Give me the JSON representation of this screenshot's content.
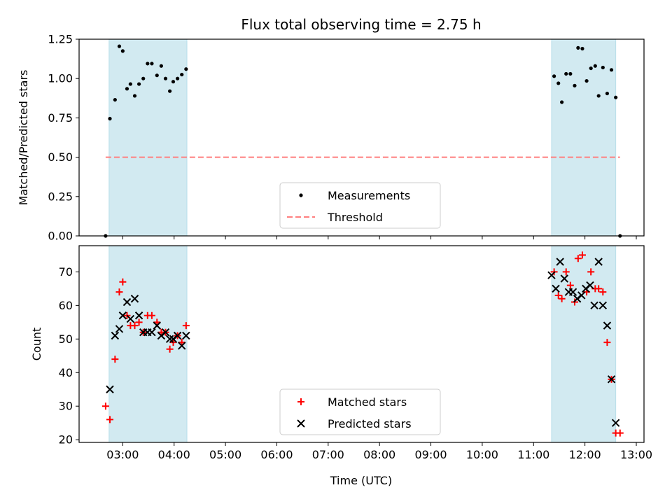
{
  "figure": {
    "title": "Flux total observing time = 2.75 h",
    "xlabel": "Time (UTC)"
  },
  "chart_data": [
    {
      "type": "scatter",
      "title": "Flux total observing time = 2.75 h",
      "xlabel": "",
      "ylabel": "Matched/Predicted stars",
      "ylim": [
        0,
        1.25
      ],
      "xlim_hours": [
        2.15,
        13.15
      ],
      "x_ticks": [
        "03:00",
        "04:00",
        "05:00",
        "06:00",
        "07:00",
        "08:00",
        "09:00",
        "10:00",
        "11:00",
        "12:00",
        "13:00"
      ],
      "y_ticks": [
        "0.00",
        "0.25",
        "0.50",
        "0.75",
        "1.00",
        "1.25"
      ],
      "shaded_intervals": [
        [
          "02:44",
          "04:15"
        ],
        [
          "11:21",
          "12:36"
        ]
      ],
      "shade_color": "#add8e6",
      "legend": {
        "placement": "lower-center",
        "entries": [
          "Measurements",
          "Threshold"
        ]
      },
      "series": [
        {
          "name": "Measurements",
          "marker": "dot",
          "color": "#000000",
          "points": [
            [
              "02:40",
              0.0
            ],
            [
              "02:45",
              0.745
            ],
            [
              "02:51",
              0.865
            ],
            [
              "02:56",
              1.205
            ],
            [
              "03:00",
              1.175
            ],
            [
              "03:05",
              0.935
            ],
            [
              "03:09",
              0.965
            ],
            [
              "03:14",
              0.89
            ],
            [
              "03:19",
              0.965
            ],
            [
              "03:24",
              1.0
            ],
            [
              "03:29",
              1.095
            ],
            [
              "03:34",
              1.095
            ],
            [
              "03:40",
              1.02
            ],
            [
              "03:45",
              1.08
            ],
            [
              "03:50",
              1.0
            ],
            [
              "03:55",
              0.92
            ],
            [
              "03:59",
              0.98
            ],
            [
              "04:04",
              1.0
            ],
            [
              "04:09",
              1.025
            ],
            [
              "04:14",
              1.06
            ],
            [
              "11:24",
              1.015
            ],
            [
              "11:29",
              0.97
            ],
            [
              "11:33",
              0.85
            ],
            [
              "11:38",
              1.03
            ],
            [
              "11:43",
              1.03
            ],
            [
              "11:48",
              0.955
            ],
            [
              "11:52",
              1.195
            ],
            [
              "11:57",
              1.19
            ],
            [
              "12:02",
              0.985
            ],
            [
              "12:07",
              1.065
            ],
            [
              "12:12",
              1.08
            ],
            [
              "12:16",
              0.89
            ],
            [
              "12:21",
              1.07
            ],
            [
              "12:26",
              0.905
            ],
            [
              "12:31",
              1.055
            ],
            [
              "12:36",
              0.88
            ],
            [
              "12:41",
              0.0
            ]
          ]
        },
        {
          "name": "Threshold",
          "line_style": "dashed",
          "color": "#ff7f7f",
          "y": 0.5,
          "x_range": [
            "02:40",
            "12:41"
          ]
        }
      ]
    },
    {
      "type": "scatter",
      "xlabel": "Time (UTC)",
      "ylabel": "Count",
      "ylim": [
        19.2,
        77.8
      ],
      "xlim_hours": [
        2.15,
        13.15
      ],
      "x_ticks": [
        "03:00",
        "04:00",
        "05:00",
        "06:00",
        "07:00",
        "08:00",
        "09:00",
        "10:00",
        "11:00",
        "12:00",
        "13:00"
      ],
      "y_ticks": [
        "20",
        "30",
        "40",
        "50",
        "60",
        "70"
      ],
      "shaded_intervals": [
        [
          "02:44",
          "04:15"
        ],
        [
          "11:21",
          "12:36"
        ]
      ],
      "shade_color": "#add8e6",
      "legend": {
        "placement": "lower-center",
        "entries": [
          "Matched stars",
          "Predicted stars"
        ]
      },
      "series": [
        {
          "name": "Matched stars",
          "marker": "plus",
          "color": "#ff0000",
          "points": [
            [
              "02:40",
              30
            ],
            [
              "02:45",
              26
            ],
            [
              "02:51",
              44
            ],
            [
              "02:56",
              64
            ],
            [
              "03:00",
              67
            ],
            [
              "03:05",
              57
            ],
            [
              "03:09",
              54
            ],
            [
              "03:14",
              54
            ],
            [
              "03:19",
              55
            ],
            [
              "03:24",
              52
            ],
            [
              "03:29",
              57
            ],
            [
              "03:34",
              57
            ],
            [
              "03:40",
              55
            ],
            [
              "03:45",
              52
            ],
            [
              "03:50",
              52
            ],
            [
              "03:55",
              47
            ],
            [
              "03:59",
              49
            ],
            [
              "04:04",
              51
            ],
            [
              "04:09",
              49
            ],
            [
              "04:14",
              54
            ],
            [
              "11:24",
              70
            ],
            [
              "11:29",
              63
            ],
            [
              "11:33",
              62
            ],
            [
              "11:38",
              70
            ],
            [
              "11:43",
              66
            ],
            [
              "11:48",
              61
            ],
            [
              "11:52",
              74
            ],
            [
              "11:57",
              75
            ],
            [
              "12:02",
              64
            ],
            [
              "12:07",
              70
            ],
            [
              "12:12",
              65
            ],
            [
              "12:16",
              65
            ],
            [
              "12:21",
              64
            ],
            [
              "12:26",
              49
            ],
            [
              "12:31",
              38
            ],
            [
              "12:36",
              22
            ],
            [
              "12:41",
              22
            ]
          ]
        },
        {
          "name": "Predicted stars",
          "marker": "x",
          "color": "#000000",
          "points": [
            [
              "02:45",
              35
            ],
            [
              "02:51",
              51
            ],
            [
              "02:56",
              53
            ],
            [
              "03:00",
              57
            ],
            [
              "03:05",
              61
            ],
            [
              "03:09",
              56
            ],
            [
              "03:14",
              62
            ],
            [
              "03:19",
              57
            ],
            [
              "03:24",
              52
            ],
            [
              "03:29",
              52
            ],
            [
              "03:34",
              52
            ],
            [
              "03:40",
              54
            ],
            [
              "03:45",
              51
            ],
            [
              "03:50",
              52
            ],
            [
              "03:55",
              50
            ],
            [
              "03:59",
              50
            ],
            [
              "04:04",
              51
            ],
            [
              "04:09",
              48
            ],
            [
              "04:14",
              51
            ],
            [
              "11:21",
              69
            ],
            [
              "11:26",
              65
            ],
            [
              "11:31",
              73
            ],
            [
              "11:36",
              68
            ],
            [
              "11:41",
              64
            ],
            [
              "11:46",
              64
            ],
            [
              "11:51",
              62
            ],
            [
              "11:56",
              63
            ],
            [
              "12:01",
              65
            ],
            [
              "12:06",
              66
            ],
            [
              "12:11",
              60
            ],
            [
              "12:16",
              73
            ],
            [
              "12:21",
              60
            ],
            [
              "12:26",
              54
            ],
            [
              "12:31",
              38
            ],
            [
              "12:36",
              25
            ]
          ]
        }
      ]
    }
  ]
}
